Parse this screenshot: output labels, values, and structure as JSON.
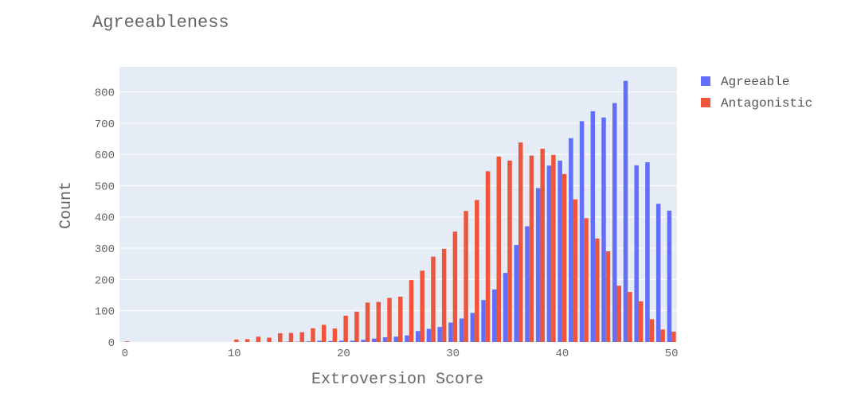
{
  "chart_data": {
    "type": "bar",
    "title": "Agreeableness",
    "xlabel": "Extroversion Score",
    "ylabel": "Count",
    "xlim": [
      -0.5,
      50.5
    ],
    "ylim": [
      0,
      880
    ],
    "x_ticks": [
      0,
      10,
      20,
      30,
      40,
      50
    ],
    "y_ticks": [
      0,
      100,
      200,
      300,
      400,
      500,
      600,
      700,
      800
    ],
    "grid": true,
    "legend_position": "top-right",
    "x": [
      0,
      1,
      2,
      3,
      4,
      5,
      6,
      7,
      8,
      9,
      10,
      11,
      12,
      13,
      14,
      15,
      16,
      17,
      18,
      19,
      20,
      21,
      22,
      23,
      24,
      25,
      26,
      27,
      28,
      29,
      30,
      31,
      32,
      33,
      34,
      35,
      36,
      37,
      38,
      39,
      40,
      41,
      42,
      43,
      44,
      45,
      46,
      47,
      48,
      49,
      50
    ],
    "series": [
      {
        "name": "Agreeable",
        "color": "#636efa",
        "values": [
          0,
          0,
          0,
          0,
          0,
          0,
          0,
          0,
          0,
          0,
          0,
          0,
          0,
          0,
          0,
          1,
          1,
          2,
          4,
          3,
          4,
          4,
          7,
          11,
          15,
          17,
          21,
          35,
          42,
          48,
          62,
          75,
          93,
          134,
          168,
          221,
          310,
          370,
          492,
          564,
          580,
          652,
          706,
          738,
          718,
          764,
          835,
          565,
          575,
          442,
          420
        ]
      },
      {
        "name": "Antagonistic",
        "color": "#ef553b",
        "values": [
          2,
          0,
          0,
          0,
          0,
          0,
          0,
          0,
          0,
          0,
          8,
          9,
          17,
          14,
          28,
          29,
          31,
          44,
          55,
          43,
          84,
          97,
          126,
          128,
          141,
          145,
          198,
          228,
          273,
          298,
          353,
          419,
          454,
          546,
          593,
          580,
          638,
          596,
          618,
          598,
          537,
          456,
          396,
          331,
          290,
          180,
          160,
          130,
          73,
          40,
          33
        ]
      }
    ]
  }
}
